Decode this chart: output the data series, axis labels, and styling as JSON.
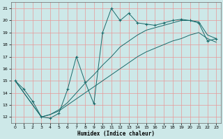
{
  "xlabel": "Humidex (Indice chaleur)",
  "bg_color": "#cde8e8",
  "grid_color": "#e89898",
  "line_color": "#1a6b6b",
  "xlim": [
    -0.5,
    23.5
  ],
  "ylim": [
    11.5,
    21.5
  ],
  "xticks": [
    0,
    1,
    2,
    3,
    4,
    5,
    6,
    7,
    8,
    9,
    10,
    11,
    12,
    13,
    14,
    15,
    16,
    17,
    18,
    19,
    20,
    21,
    22,
    23
  ],
  "yticks": [
    12,
    13,
    14,
    15,
    16,
    17,
    18,
    19,
    20,
    21
  ],
  "figsize": [
    3.2,
    2.0
  ],
  "dpi": 100,
  "line1_x": [
    0,
    1,
    2,
    3,
    4,
    5,
    6,
    7,
    8,
    9,
    10,
    11,
    12,
    13,
    14,
    15,
    16,
    17,
    18,
    19,
    20,
    21,
    22,
    23
  ],
  "line1_y": [
    15.0,
    14.3,
    13.3,
    12.0,
    11.9,
    12.3,
    14.3,
    17.0,
    14.9,
    13.1,
    19.0,
    21.0,
    20.0,
    20.6,
    19.8,
    19.7,
    19.6,
    19.8,
    20.0,
    20.1,
    20.0,
    19.8,
    18.3,
    18.5
  ],
  "line2_x": [
    0,
    3,
    4,
    5,
    6,
    7,
    8,
    9,
    10,
    11,
    12,
    13,
    14,
    15,
    16,
    17,
    18,
    19,
    20,
    21,
    22,
    23
  ],
  "line2_y": [
    15.0,
    12.0,
    12.2,
    12.5,
    13.0,
    13.5,
    14.0,
    14.5,
    15.0,
    15.5,
    16.0,
    16.5,
    17.0,
    17.4,
    17.7,
    18.0,
    18.3,
    18.5,
    18.8,
    19.0,
    18.5,
    18.2
  ],
  "line3_x": [
    0,
    3,
    4,
    5,
    6,
    7,
    8,
    9,
    10,
    11,
    12,
    13,
    14,
    15,
    16,
    17,
    18,
    19,
    20,
    21,
    22,
    23
  ],
  "line3_y": [
    15.0,
    12.0,
    12.2,
    12.6,
    13.2,
    14.0,
    14.8,
    15.5,
    16.3,
    17.0,
    17.8,
    18.3,
    18.8,
    19.2,
    19.4,
    19.6,
    19.8,
    20.0,
    20.0,
    19.9,
    18.8,
    18.5
  ]
}
